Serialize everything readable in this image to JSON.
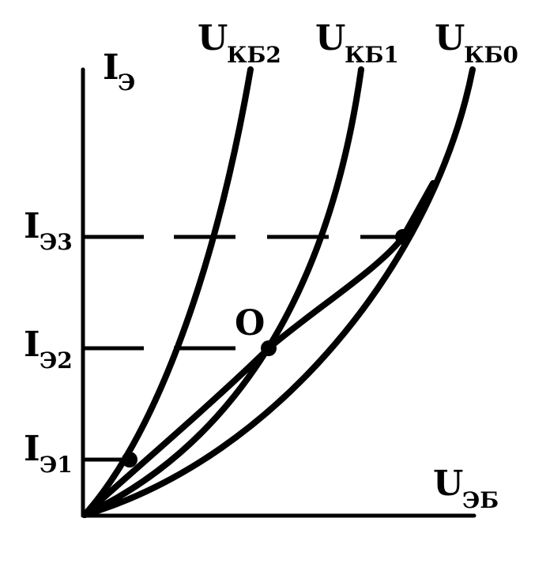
{
  "axes": {
    "y": {
      "main": "I",
      "sub": "Э"
    },
    "x": {
      "main": "U",
      "sub": "ЭБ"
    }
  },
  "curve_labels": [
    {
      "main": "U",
      "sub": "КБ2"
    },
    {
      "main": "U",
      "sub": "КБ1"
    },
    {
      "main": "U",
      "sub": "КБ0"
    }
  ],
  "y_ticks": [
    {
      "main": "I",
      "sub": "Э3"
    },
    {
      "main": "I",
      "sub": "Э2"
    },
    {
      "main": "I",
      "sub": "Э1"
    }
  ],
  "point_label": "O",
  "colors": {
    "ink": "#000000",
    "background": "#ffffff"
  }
}
